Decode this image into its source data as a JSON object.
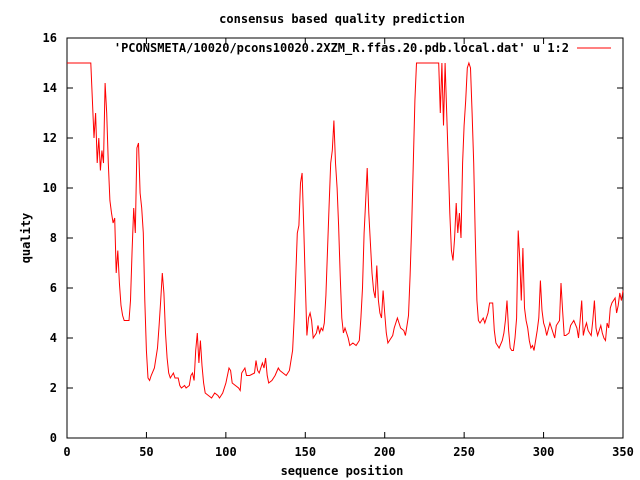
{
  "chart_data": {
    "type": "line",
    "title": "consensus based quality prediction",
    "xlabel": "sequence position",
    "ylabel": "quality",
    "xlim": [
      0,
      350
    ],
    "ylim": [
      0,
      16
    ],
    "xticks": [
      0,
      50,
      100,
      150,
      200,
      250,
      300,
      350
    ],
    "yticks": [
      0,
      2,
      4,
      6,
      8,
      10,
      12,
      14,
      16
    ],
    "grid": false,
    "legend_position": "top-right",
    "series": [
      {
        "name": "'PCONSMETA/10020/pcons10020.2XZM_R.ffas.20.pdb.local.dat' u 1:2",
        "color": "#ff0000",
        "points": [
          [
            0,
            15
          ],
          [
            15,
            15
          ],
          [
            16,
            13.5
          ],
          [
            17,
            12
          ],
          [
            18,
            13
          ],
          [
            19,
            11
          ],
          [
            20,
            12
          ],
          [
            21,
            10.7
          ],
          [
            22,
            11.5
          ],
          [
            23,
            11
          ],
          [
            24,
            14.2
          ],
          [
            25,
            13
          ],
          [
            26,
            11
          ],
          [
            27,
            9.5
          ],
          [
            28,
            9
          ],
          [
            29,
            8.6
          ],
          [
            30,
            8.8
          ],
          [
            31,
            6.6
          ],
          [
            32,
            7.5
          ],
          [
            33,
            6.2
          ],
          [
            34,
            5.3
          ],
          [
            35,
            4.9
          ],
          [
            36,
            4.7
          ],
          [
            38,
            4.7
          ],
          [
            39,
            4.7
          ],
          [
            40,
            5.5
          ],
          [
            41,
            7.5
          ],
          [
            42,
            9.2
          ],
          [
            43,
            8.2
          ],
          [
            44,
            11.6
          ],
          [
            45,
            11.8
          ],
          [
            46,
            9.8
          ],
          [
            47,
            9.2
          ],
          [
            48,
            8.2
          ],
          [
            49,
            5.5
          ],
          [
            50,
            3.5
          ],
          [
            51,
            2.4
          ],
          [
            52,
            2.3
          ],
          [
            53,
            2.5
          ],
          [
            55,
            2.8
          ],
          [
            57,
            3.6
          ],
          [
            58,
            4.5
          ],
          [
            59,
            5.5
          ],
          [
            60,
            6.6
          ],
          [
            61,
            5.8
          ],
          [
            62,
            4.2
          ],
          [
            63,
            3.2
          ],
          [
            64,
            2.6
          ],
          [
            65,
            2.4
          ],
          [
            67,
            2.6
          ],
          [
            68,
            2.4
          ],
          [
            70,
            2.4
          ],
          [
            71,
            2.1
          ],
          [
            72,
            2.0
          ],
          [
            74,
            2.1
          ],
          [
            75,
            2.0
          ],
          [
            77,
            2.1
          ],
          [
            78,
            2.5
          ],
          [
            79,
            2.6
          ],
          [
            80,
            2.3
          ],
          [
            81,
            3.5
          ],
          [
            82,
            4.2
          ],
          [
            83,
            3.0
          ],
          [
            84,
            3.9
          ],
          [
            85,
            2.9
          ],
          [
            86,
            2.2
          ],
          [
            87,
            1.8
          ],
          [
            89,
            1.7
          ],
          [
            91,
            1.6
          ],
          [
            93,
            1.8
          ],
          [
            95,
            1.7
          ],
          [
            96,
            1.6
          ],
          [
            98,
            1.8
          ],
          [
            100,
            2.2
          ],
          [
            102,
            2.8
          ],
          [
            103,
            2.7
          ],
          [
            104,
            2.2
          ],
          [
            106,
            2.1
          ],
          [
            108,
            2.0
          ],
          [
            109,
            1.9
          ],
          [
            110,
            2.6
          ],
          [
            112,
            2.8
          ],
          [
            113,
            2.5
          ],
          [
            115,
            2.5
          ],
          [
            118,
            2.6
          ],
          [
            119,
            3.1
          ],
          [
            120,
            2.7
          ],
          [
            121,
            2.6
          ],
          [
            123,
            3.0
          ],
          [
            124,
            2.8
          ],
          [
            125,
            3.2
          ],
          [
            126,
            2.5
          ],
          [
            127,
            2.2
          ],
          [
            129,
            2.3
          ],
          [
            131,
            2.5
          ],
          [
            133,
            2.8
          ],
          [
            134,
            2.7
          ],
          [
            136,
            2.6
          ],
          [
            138,
            2.5
          ],
          [
            140,
            2.7
          ],
          [
            142,
            3.5
          ],
          [
            143,
            4.8
          ],
          [
            144,
            6.5
          ],
          [
            145,
            8.2
          ],
          [
            146,
            8.5
          ],
          [
            147,
            10.2
          ],
          [
            148,
            10.6
          ],
          [
            149,
            8.5
          ],
          [
            150,
            6.2
          ],
          [
            151,
            4.1
          ],
          [
            152,
            4.8
          ],
          [
            153,
            5.0
          ],
          [
            154,
            4.7
          ],
          [
            155,
            4.0
          ],
          [
            157,
            4.2
          ],
          [
            158,
            4.5
          ],
          [
            159,
            4.2
          ],
          [
            160,
            4.4
          ],
          [
            161,
            4.3
          ],
          [
            162,
            4.6
          ],
          [
            163,
            5.7
          ],
          [
            164,
            7.5
          ],
          [
            165,
            9.3
          ],
          [
            166,
            11.0
          ],
          [
            167,
            11.5
          ],
          [
            168,
            12.7
          ],
          [
            169,
            11.0
          ],
          [
            170,
            10.0
          ],
          [
            171,
            8.5
          ],
          [
            172,
            6.5
          ],
          [
            173,
            4.8
          ],
          [
            174,
            4.2
          ],
          [
            175,
            4.4
          ],
          [
            176,
            4.2
          ],
          [
            177,
            4.0
          ],
          [
            178,
            3.7
          ],
          [
            180,
            3.8
          ],
          [
            182,
            3.7
          ],
          [
            184,
            3.9
          ],
          [
            185,
            4.8
          ],
          [
            186,
            6.0
          ],
          [
            187,
            8.2
          ],
          [
            188,
            9.5
          ],
          [
            189,
            10.8
          ],
          [
            190,
            9.0
          ],
          [
            191,
            7.8
          ],
          [
            192,
            6.6
          ],
          [
            193,
            5.9
          ],
          [
            194,
            5.6
          ],
          [
            195,
            6.9
          ],
          [
            196,
            5.5
          ],
          [
            197,
            5.0
          ],
          [
            198,
            4.8
          ],
          [
            199,
            5.9
          ],
          [
            200,
            5.0
          ],
          [
            201,
            4.2
          ],
          [
            202,
            3.8
          ],
          [
            203,
            3.9
          ],
          [
            205,
            4.1
          ],
          [
            206,
            4.4
          ],
          [
            208,
            4.8
          ],
          [
            209,
            4.6
          ],
          [
            210,
            4.4
          ],
          [
            212,
            4.3
          ],
          [
            213,
            4.1
          ],
          [
            214,
            4.5
          ],
          [
            215,
            4.9
          ],
          [
            216,
            6.5
          ],
          [
            217,
            8.5
          ],
          [
            218,
            11.0
          ],
          [
            219,
            13.5
          ],
          [
            220,
            15
          ],
          [
            234,
            15
          ],
          [
            235,
            13.0
          ],
          [
            236,
            15
          ],
          [
            237,
            12.5
          ],
          [
            238,
            15
          ],
          [
            239,
            13.0
          ],
          [
            240,
            11.0
          ],
          [
            241,
            9.0
          ],
          [
            242,
            7.5
          ],
          [
            243,
            7.1
          ],
          [
            244,
            8.0
          ],
          [
            245,
            9.4
          ],
          [
            246,
            8.2
          ],
          [
            247,
            9.0
          ],
          [
            248,
            8.0
          ],
          [
            249,
            11.0
          ],
          [
            250,
            12.5
          ],
          [
            251,
            13.5
          ],
          [
            252,
            14.8
          ],
          [
            253,
            15
          ],
          [
            254,
            14.8
          ],
          [
            255,
            13.0
          ],
          [
            256,
            11.0
          ],
          [
            257,
            8.0
          ],
          [
            258,
            5.5
          ],
          [
            259,
            4.7
          ],
          [
            260,
            4.6
          ],
          [
            262,
            4.8
          ],
          [
            263,
            4.6
          ],
          [
            265,
            5.0
          ],
          [
            266,
            5.4
          ],
          [
            268,
            5.4
          ],
          [
            269,
            4.3
          ],
          [
            270,
            3.8
          ],
          [
            272,
            3.6
          ],
          [
            274,
            3.9
          ],
          [
            275,
            4.2
          ],
          [
            276,
            4.7
          ],
          [
            277,
            5.5
          ],
          [
            278,
            4.3
          ],
          [
            279,
            3.6
          ],
          [
            280,
            3.5
          ],
          [
            281,
            3.5
          ],
          [
            282,
            4.0
          ],
          [
            283,
            4.8
          ],
          [
            284,
            8.3
          ],
          [
            285,
            7.2
          ],
          [
            286,
            5.5
          ],
          [
            287,
            7.6
          ],
          [
            288,
            5.2
          ],
          [
            289,
            4.7
          ],
          [
            290,
            4.4
          ],
          [
            291,
            3.9
          ],
          [
            292,
            3.6
          ],
          [
            293,
            3.7
          ],
          [
            294,
            3.5
          ],
          [
            295,
            3.9
          ],
          [
            296,
            4.3
          ],
          [
            297,
            4.8
          ],
          [
            298,
            6.3
          ],
          [
            299,
            5.1
          ],
          [
            300,
            4.6
          ],
          [
            301,
            4.4
          ],
          [
            302,
            4.1
          ],
          [
            304,
            4.6
          ],
          [
            305,
            4.4
          ],
          [
            306,
            4.2
          ],
          [
            307,
            4.0
          ],
          [
            308,
            4.5
          ],
          [
            310,
            4.7
          ],
          [
            311,
            6.2
          ],
          [
            312,
            5.1
          ],
          [
            313,
            4.1
          ],
          [
            314,
            4.1
          ],
          [
            316,
            4.2
          ],
          [
            317,
            4.5
          ],
          [
            319,
            4.7
          ],
          [
            321,
            4.4
          ],
          [
            322,
            4.0
          ],
          [
            323,
            4.7
          ],
          [
            324,
            5.5
          ],
          [
            325,
            4.1
          ],
          [
            326,
            4.4
          ],
          [
            327,
            4.6
          ],
          [
            328,
            4.3
          ],
          [
            329,
            4.2
          ],
          [
            330,
            4.1
          ],
          [
            331,
            4.7
          ],
          [
            332,
            5.5
          ],
          [
            333,
            4.4
          ],
          [
            334,
            4.1
          ],
          [
            336,
            4.5
          ],
          [
            337,
            4.2
          ],
          [
            338,
            4.0
          ],
          [
            339,
            3.9
          ],
          [
            340,
            4.6
          ],
          [
            341,
            4.4
          ],
          [
            342,
            5.2
          ],
          [
            343,
            5.4
          ],
          [
            344,
            5.5
          ],
          [
            345,
            5.6
          ],
          [
            346,
            5.0
          ],
          [
            347,
            5.3
          ],
          [
            348,
            5.8
          ],
          [
            349,
            5.5
          ],
          [
            350,
            5.9
          ]
        ]
      }
    ]
  }
}
